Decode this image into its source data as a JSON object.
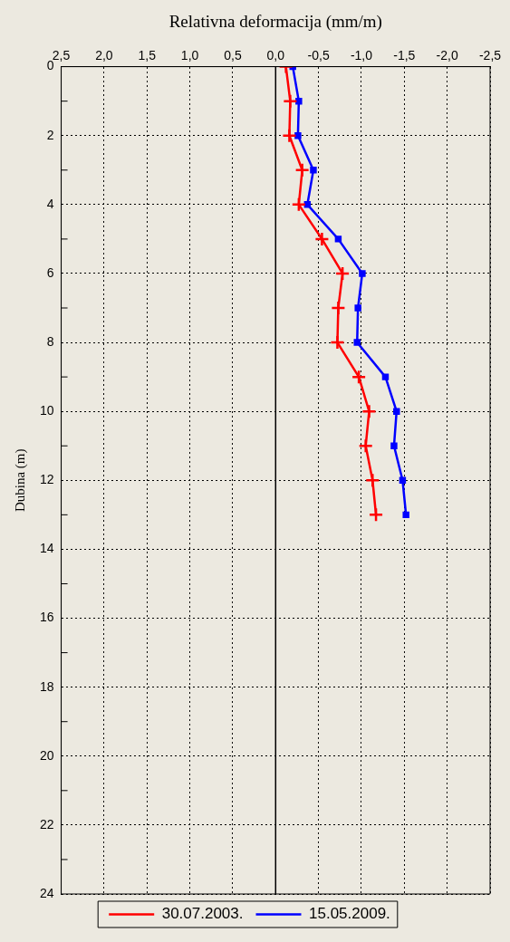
{
  "chart_data": {
    "type": "line",
    "xlabel": "Relativna deformacija (mm/m)",
    "ylabel": "Dubina (m)",
    "xlim": [
      2.5,
      -2.5
    ],
    "xticks": [
      {
        "value": 2.5,
        "label": "2,5"
      },
      {
        "value": 2,
        "label": "2,0"
      },
      {
        "value": 1.5,
        "label": "1,5"
      },
      {
        "value": 1,
        "label": "1,0"
      },
      {
        "value": 0.5,
        "label": "0,5"
      },
      {
        "value": 0,
        "label": "0,0"
      },
      {
        "value": -0.5,
        "label": "-0,5"
      },
      {
        "value": -1,
        "label": "-1,0"
      },
      {
        "value": -1.5,
        "label": "-1,5"
      },
      {
        "value": -2,
        "label": "-2,0"
      },
      {
        "value": -2.5,
        "label": "-2,5"
      }
    ],
    "ylim": [
      24,
      0
    ],
    "yticks": [
      0,
      {
        "value": 1,
        "label": null
      },
      2,
      {
        "value": 3,
        "label": null
      },
      4,
      {
        "value": 5,
        "label": null
      },
      6,
      {
        "value": 7,
        "label": null
      },
      8,
      {
        "value": 9,
        "label": null
      },
      10,
      {
        "value": 11,
        "label": null
      },
      12,
      {
        "value": 13,
        "label": null
      },
      14,
      {
        "value": 15,
        "label": null
      },
      16,
      {
        "value": 17,
        "label": null
      },
      18,
      {
        "value": 19,
        "label": null
      },
      20,
      {
        "value": 21,
        "label": null
      },
      22,
      {
        "value": 23,
        "label": null
      },
      24
    ],
    "series": [
      {
        "name": "30.07.2003.",
        "color": "#ff0000",
        "marker": "cross",
        "x": [
          -0.12,
          -0.17,
          -0.16,
          -0.31,
          -0.27,
          -0.54,
          -0.78,
          -0.73,
          -0.72,
          -0.97,
          -1.09,
          -1.05,
          -1.13,
          -1.17
        ],
        "values": [
          0,
          1,
          2,
          3,
          4,
          5,
          6,
          7,
          8,
          9,
          10,
          11,
          12,
          13
        ]
      },
      {
        "name": "15.05.2009.",
        "color": "#0000ff",
        "marker": "square",
        "x": [
          -0.2,
          -0.27,
          -0.26,
          -0.44,
          -0.37,
          -0.73,
          -1.01,
          -0.96,
          -0.95,
          -1.28,
          -1.41,
          -1.38,
          -1.48,
          -1.52
        ],
        "values": [
          0,
          1,
          2,
          3,
          4,
          5,
          6,
          7,
          8,
          9,
          10,
          11,
          12,
          13
        ]
      }
    ],
    "ref_lines": [
      {
        "axis": "x",
        "value": 0,
        "color": "#000000",
        "line_style": "solid"
      }
    ],
    "grid": true,
    "legend": "bottom",
    "line_style": "solid"
  }
}
